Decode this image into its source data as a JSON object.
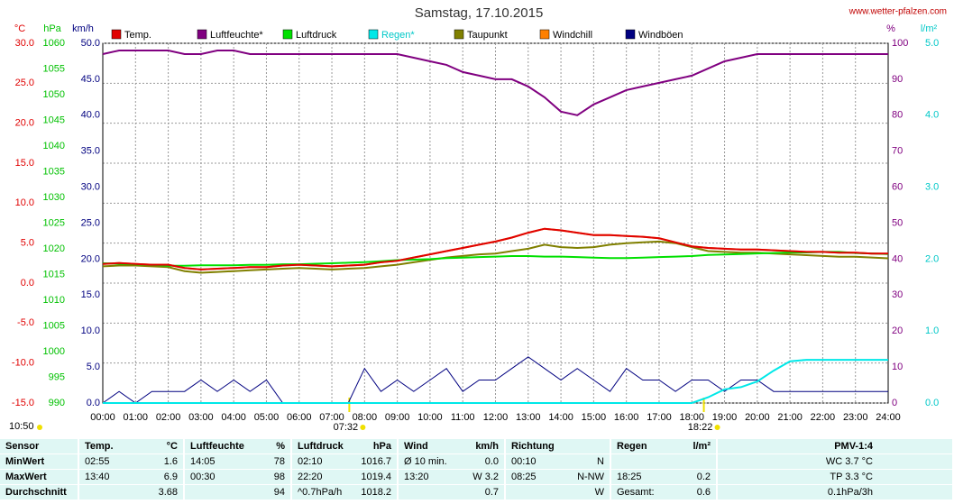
{
  "chart_data": {
    "type": "line",
    "title": "Samstag, 17.10.2015",
    "source": "www.wetter-pfalzen.com",
    "grid": true,
    "x": [
      0,
      0.5,
      1,
      1.5,
      2,
      2.5,
      3,
      3.5,
      4,
      4.5,
      5,
      5.5,
      6,
      6.5,
      7,
      7.5,
      8,
      8.5,
      9,
      9.5,
      10,
      10.5,
      11,
      11.5,
      12,
      12.5,
      13,
      13.5,
      14,
      14.5,
      15,
      15.5,
      16,
      16.5,
      17,
      17.5,
      18,
      18.5,
      19,
      19.5,
      20,
      20.5,
      21,
      21.5,
      22,
      22.5,
      23,
      23.5,
      24
    ],
    "xlim": [
      0,
      24
    ],
    "xticks": [
      {
        "value": 0,
        "label": "00:00"
      },
      {
        "value": 1,
        "label": "01:00"
      },
      {
        "value": 2,
        "label": "02:00"
      },
      {
        "value": 3,
        "label": "03:00"
      },
      {
        "value": 4,
        "label": "04:00"
      },
      {
        "value": 5,
        "label": "05:00"
      },
      {
        "value": 6,
        "label": "06:00"
      },
      {
        "value": 7,
        "label": "07:00"
      },
      {
        "value": 8,
        "label": "08:00"
      },
      {
        "value": 9,
        "label": "09:00"
      },
      {
        "value": 10,
        "label": "10:00"
      },
      {
        "value": 11,
        "label": "11:00"
      },
      {
        "value": 12,
        "label": "12:00"
      },
      {
        "value": 13,
        "label": "13:00"
      },
      {
        "value": 14,
        "label": "14:00"
      },
      {
        "value": 15,
        "label": "15:00"
      },
      {
        "value": 16,
        "label": "16:00"
      },
      {
        "value": 17,
        "label": "17:00"
      },
      {
        "value": 18,
        "label": "18:00"
      },
      {
        "value": 19,
        "label": "19:00"
      },
      {
        "value": 20,
        "label": "20:00"
      },
      {
        "value": 21,
        "label": "21:00"
      },
      {
        "value": 22,
        "label": "22:00"
      },
      {
        "value": 23,
        "label": "23:00"
      },
      {
        "value": 24,
        "label": "24:00"
      }
    ],
    "sun_events": [
      {
        "value": 7.533,
        "label": "07:32"
      },
      {
        "value": 18.367,
        "label": "18:22"
      }
    ],
    "moonrise": "10:50",
    "axes": {
      "temp": {
        "label": "°C",
        "color": "#e00000",
        "lim": [
          -15,
          30
        ],
        "ticks": [
          {
            "value": -15,
            "label": "-15.0"
          },
          {
            "value": -10,
            "label": "-10.0"
          },
          {
            "value": -5,
            "label": "-5.0"
          },
          {
            "value": 0,
            "label": "0.0"
          },
          {
            "value": 5,
            "label": "5.0"
          },
          {
            "value": 10,
            "label": "10.0"
          },
          {
            "value": 15,
            "label": "15.0"
          },
          {
            "value": 20,
            "label": "20.0"
          },
          {
            "value": 25,
            "label": "25.0"
          },
          {
            "value": 30,
            "label": "30.0"
          }
        ]
      },
      "hpa": {
        "label": "hPa",
        "color": "#00c000",
        "lim": [
          990,
          1060
        ],
        "ticks": [
          990,
          995,
          1000,
          1005,
          1010,
          1015,
          1020,
          1025,
          1030,
          1035,
          1040,
          1045,
          1050,
          1055,
          1060
        ]
      },
      "kmh": {
        "label": "km/h",
        "color": "#000080",
        "lim": [
          0,
          50
        ],
        "ticks": [
          {
            "value": 0,
            "label": "0.0"
          },
          {
            "value": 5,
            "label": "5.0"
          },
          {
            "value": 10,
            "label": "10.0"
          },
          {
            "value": 15,
            "label": "15.0"
          },
          {
            "value": 20,
            "label": "20.0"
          },
          {
            "value": 25,
            "label": "25.0"
          },
          {
            "value": 30,
            "label": "30.0"
          },
          {
            "value": 35,
            "label": "35.0"
          },
          {
            "value": 40,
            "label": "40.0"
          },
          {
            "value": 45,
            "label": "45.0"
          },
          {
            "value": 50,
            "label": "50.0"
          }
        ]
      },
      "pct": {
        "label": "%",
        "color": "#800080",
        "lim": [
          0,
          100
        ],
        "ticks": [
          0,
          10,
          20,
          30,
          40,
          50,
          60,
          70,
          80,
          90,
          100
        ]
      },
      "rain": {
        "label": "l/m²",
        "color": "#00c8c8",
        "lim": [
          0,
          5
        ],
        "ticks": [
          {
            "value": 0,
            "label": "0.0"
          },
          {
            "value": 1,
            "label": "1.0"
          },
          {
            "value": 2,
            "label": "2.0"
          },
          {
            "value": 3,
            "label": "3.0"
          },
          {
            "value": 4,
            "label": "4.0"
          },
          {
            "value": 5,
            "label": "5.0"
          }
        ]
      }
    },
    "series": [
      {
        "name": "Temp.",
        "color": "#e00000",
        "axis": "temp",
        "values": [
          2.4,
          2.5,
          2.4,
          2.3,
          2.3,
          1.9,
          1.7,
          1.8,
          1.9,
          2.0,
          2.0,
          2.2,
          2.3,
          2.2,
          2.1,
          2.2,
          2.3,
          2.6,
          2.8,
          3.2,
          3.6,
          4.0,
          4.4,
          4.8,
          5.2,
          5.7,
          6.3,
          6.8,
          6.6,
          6.3,
          6.0,
          6.0,
          5.9,
          5.8,
          5.6,
          5.1,
          4.6,
          4.4,
          4.3,
          4.2,
          4.2,
          4.1,
          4.0,
          3.9,
          3.9,
          3.8,
          3.8,
          3.7,
          3.7
        ]
      },
      {
        "name": "Luftfeuchte*",
        "color": "#800080",
        "axis": "pct",
        "values": [
          97,
          98,
          98,
          98,
          98,
          97,
          97,
          98,
          98,
          97,
          97,
          97,
          97,
          97,
          97,
          97,
          97,
          97,
          97,
          96,
          95,
          94,
          92,
          91,
          90,
          90,
          88,
          85,
          81,
          80,
          83,
          85,
          87,
          88,
          89,
          90,
          91,
          93,
          95,
          96,
          97,
          97,
          97,
          97,
          97,
          97,
          97,
          97,
          97
        ]
      },
      {
        "name": "Luftdruck",
        "color": "#00e000",
        "axis": "hpa",
        "values": [
          1017.2,
          1017.1,
          1017.0,
          1016.9,
          1016.7,
          1016.7,
          1016.8,
          1016.8,
          1016.8,
          1016.9,
          1016.9,
          1017.0,
          1017.0,
          1017.1,
          1017.2,
          1017.3,
          1017.4,
          1017.6,
          1017.8,
          1017.9,
          1018.0,
          1018.2,
          1018.3,
          1018.4,
          1018.5,
          1018.6,
          1018.6,
          1018.5,
          1018.5,
          1018.4,
          1018.3,
          1018.2,
          1018.2,
          1018.3,
          1018.4,
          1018.5,
          1018.6,
          1018.8,
          1018.9,
          1019.0,
          1019.1,
          1019.2,
          1019.3,
          1019.3,
          1019.4,
          1019.4,
          1019.2,
          1019.1,
          1019.0
        ]
      },
      {
        "name": "Regen*",
        "color": "#00e8e8",
        "axis": "rain",
        "values": [
          0,
          0,
          0,
          0,
          0,
          0,
          0,
          0,
          0,
          0,
          0,
          0,
          0,
          0,
          0,
          0,
          0,
          0,
          0,
          0,
          0,
          0,
          0,
          0,
          0,
          0,
          0,
          0,
          0,
          0,
          0,
          0,
          0,
          0,
          0,
          0,
          0,
          0.08,
          0.19,
          0.22,
          0.3,
          0.45,
          0.58,
          0.6,
          0.6,
          0.6,
          0.6,
          0.6,
          0.6
        ]
      },
      {
        "name": "Taupunkt",
        "color": "#808000",
        "axis": "temp",
        "values": [
          2.1,
          2.2,
          2.2,
          2.1,
          2.0,
          1.5,
          1.3,
          1.4,
          1.5,
          1.6,
          1.7,
          1.8,
          1.9,
          1.8,
          1.7,
          1.8,
          1.9,
          2.1,
          2.3,
          2.6,
          2.9,
          3.2,
          3.4,
          3.6,
          3.7,
          4.0,
          4.3,
          4.8,
          4.5,
          4.4,
          4.5,
          4.8,
          5.0,
          5.1,
          5.2,
          5.0,
          4.5,
          4.0,
          3.9,
          3.8,
          3.8,
          3.7,
          3.6,
          3.5,
          3.4,
          3.3,
          3.3,
          3.2,
          3.1
        ]
      },
      {
        "name": "Windchill",
        "color": "#ff8000",
        "axis": "temp",
        "values": [
          2.4,
          2.5,
          2.4,
          2.3,
          2.3,
          1.9,
          1.7,
          1.8,
          1.9,
          2.0,
          2.0,
          2.2,
          2.3,
          2.2,
          2.1,
          2.2,
          2.3,
          2.6,
          2.8,
          3.2,
          3.6,
          4.0,
          4.4,
          4.8,
          5.2,
          5.7,
          6.3,
          6.8,
          6.6,
          6.3,
          6.0,
          6.0,
          5.9,
          5.8,
          5.6,
          5.1,
          4.6,
          4.4,
          4.3,
          4.2,
          4.2,
          4.1,
          4.0,
          3.9,
          3.9,
          3.8,
          3.8,
          3.7,
          3.7
        ]
      },
      {
        "name": "Windböen",
        "color": "#000080",
        "axis": "kmh",
        "values": [
          0,
          1.6,
          0,
          1.6,
          1.6,
          1.6,
          3.2,
          1.6,
          3.2,
          1.6,
          3.2,
          0,
          0,
          0,
          0,
          0,
          4.8,
          1.6,
          3.2,
          1.6,
          3.2,
          4.8,
          1.6,
          3.2,
          3.2,
          4.8,
          6.4,
          4.8,
          3.2,
          4.8,
          3.2,
          1.6,
          4.8,
          3.2,
          3.2,
          1.6,
          3.2,
          3.2,
          1.6,
          3.2,
          3.2,
          1.6,
          1.6,
          1.6,
          1.6,
          1.6,
          1.6,
          1.6,
          1.6
        ]
      }
    ]
  },
  "table": {
    "header": {
      "label": "Sensor",
      "cells": [
        [
          "Temp.",
          "°C"
        ],
        [
          "Luftfeuchte",
          "%"
        ],
        [
          "Luftdruck",
          "hPa"
        ],
        [
          "Wind",
          "km/h"
        ],
        [
          "Richtung"
        ],
        [
          "Regen",
          "l/m²"
        ],
        [
          "PMV-1:4"
        ]
      ]
    },
    "rows": [
      {
        "label": "MinWert",
        "cells": [
          [
            "02:55",
            "1.6"
          ],
          [
            "14:05",
            "78"
          ],
          [
            "02:10",
            "1016.7"
          ],
          [
            "Ø 10 min.",
            "0.0"
          ],
          [
            "00:10",
            "N"
          ],
          [
            null,
            null
          ],
          [
            "WC 3.7 °C"
          ]
        ]
      },
      {
        "label": "MaxWert",
        "cells": [
          [
            "13:40",
            "6.9"
          ],
          [
            "00:30",
            "98"
          ],
          [
            "22:20",
            "1019.4"
          ],
          [
            "13:20",
            "W 3.2"
          ],
          [
            "08:25",
            "N-NW"
          ],
          [
            "18:25",
            "0.2"
          ],
          [
            "TP 3.3 °C"
          ]
        ]
      },
      {
        "label": "Durchschnitt",
        "cells": [
          [
            null,
            "3.68"
          ],
          [
            null,
            "94"
          ],
          [
            "^0.7hPa/h",
            "1018.2"
          ],
          [
            null,
            "0.7"
          ],
          [
            null,
            "W"
          ],
          [
            "Gesamt:",
            "0.6"
          ],
          [
            "0.1hPa/3h"
          ]
        ]
      }
    ]
  }
}
